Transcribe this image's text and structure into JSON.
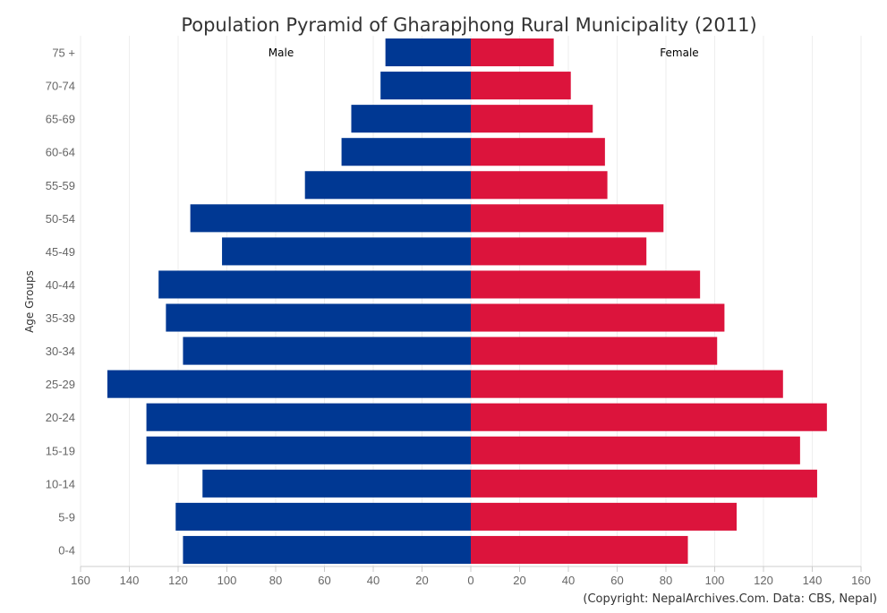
{
  "chart_data": {
    "type": "bar",
    "orientation": "horizontal-pyramid",
    "title": "Population Pyramid of Gharapjhong Rural Municipality (2011)",
    "ylabel": "Age Groups",
    "xlabel": "",
    "credit": "(Copyright: NepalArchives.Com. Data: CBS, Nepal)",
    "xlim": [
      -160,
      160
    ],
    "xticks": [
      160,
      140,
      120,
      100,
      80,
      60,
      40,
      20,
      0,
      20,
      40,
      60,
      80,
      100,
      120,
      140,
      160
    ],
    "grid": true,
    "categories": [
      "75 +",
      "70-74",
      "65-69",
      "60-64",
      "55-59",
      "50-54",
      "45-49",
      "40-44",
      "35-39",
      "30-34",
      "25-29",
      "20-24",
      "15-19",
      "10-14",
      "5-9",
      "0-4"
    ],
    "series": [
      {
        "name": "Male",
        "color": "#003893",
        "side": "left",
        "values": [
          35,
          37,
          49,
          53,
          68,
          115,
          102,
          128,
          125,
          118,
          149,
          133,
          133,
          110,
          121,
          118
        ]
      },
      {
        "name": "Female",
        "color": "#DC143C",
        "side": "right",
        "values": [
          34,
          41,
          50,
          55,
          56,
          79,
          72,
          94,
          104,
          101,
          128,
          146,
          135,
          142,
          109,
          89
        ]
      }
    ]
  }
}
